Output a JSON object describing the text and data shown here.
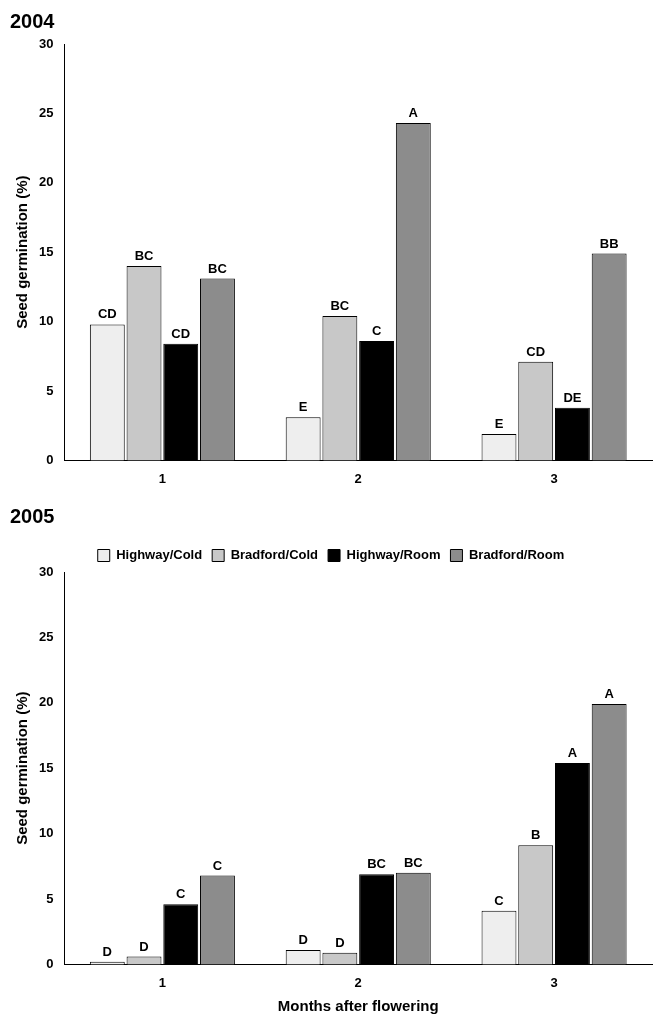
{
  "chart_data": [
    {
      "type": "bar",
      "title": "2004",
      "ylabel": "Seed germination (%)",
      "categories": [
        "1",
        "2",
        "3"
      ],
      "ylim": [
        0,
        30
      ],
      "yticks": [
        0,
        5,
        10,
        15,
        20,
        25,
        30
      ],
      "legend": false,
      "series": [
        {
          "color": "#eeeeee",
          "values": [
            9.8,
            3.1,
            1.9
          ],
          "value_labels": [
            "CD",
            "E",
            "E"
          ]
        },
        {
          "color": "#c8c8c8",
          "values": [
            14.0,
            10.4,
            7.1
          ],
          "value_labels": [
            "BC",
            "BC",
            "CD"
          ]
        },
        {
          "color": "#000000",
          "values": [
            8.4,
            8.6,
            3.8
          ],
          "value_labels": [
            "CD",
            "C",
            "DE"
          ]
        },
        {
          "color": "#8c8c8c",
          "values": [
            13.1,
            24.3,
            14.9
          ],
          "value_labels": [
            "BC",
            "A",
            "BB"
          ]
        }
      ]
    },
    {
      "type": "bar",
      "title": "2005",
      "ylabel": "Seed germination (%)",
      "xlabel": "Months after flowering",
      "categories": [
        "1",
        "2",
        "3"
      ],
      "ylim": [
        0,
        30
      ],
      "yticks": [
        0,
        5,
        10,
        15,
        20,
        25,
        30
      ],
      "legend": "top",
      "series": [
        {
          "name": "Highway/Cold",
          "color": "#eeeeee",
          "values": [
            0.2,
            1.1,
            4.1
          ],
          "value_labels": [
            "D",
            "D",
            "C"
          ]
        },
        {
          "name": "Bradford/Cold",
          "color": "#c8c8c8",
          "values": [
            0.6,
            0.9,
            9.1
          ],
          "value_labels": [
            "D",
            "D",
            "B"
          ]
        },
        {
          "name": "Highway/Room",
          "color": "#000000",
          "values": [
            4.6,
            6.9,
            15.4
          ],
          "value_labels": [
            "C",
            "BC",
            "A"
          ]
        },
        {
          "name": "Bradford/Room",
          "color": "#8c8c8c",
          "values": [
            6.8,
            7.0,
            19.9
          ],
          "value_labels": [
            "C",
            "BC",
            "A"
          ]
        }
      ]
    }
  ]
}
